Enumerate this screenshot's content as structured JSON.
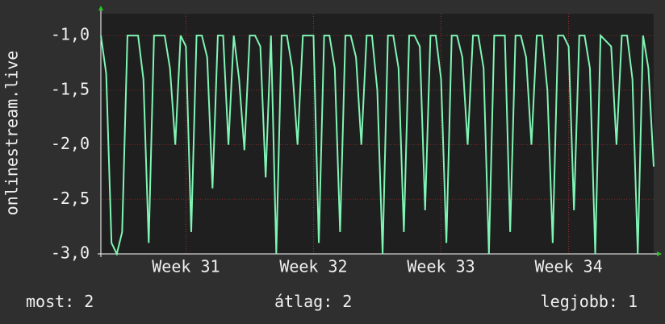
{
  "chart_data": {
    "type": "line",
    "y_label": "onlinestream.live",
    "categories": [
      null,
      null,
      null,
      null,
      null,
      null,
      null,
      null,
      null,
      null,
      null,
      null,
      null,
      null,
      null,
      null,
      "Week 31",
      null,
      null,
      null,
      null,
      null,
      null,
      null,
      null,
      null,
      null,
      null,
      null,
      null,
      null,
      null,
      null,
      null,
      null,
      null,
      null,
      null,
      null,
      null,
      "Week 32",
      null,
      null,
      null,
      null,
      null,
      null,
      null,
      null,
      null,
      null,
      null,
      null,
      null,
      null,
      null,
      null,
      null,
      null,
      null,
      null,
      null,
      null,
      null,
      "Week 33",
      null,
      null,
      null,
      null,
      null,
      null,
      null,
      null,
      null,
      null,
      null,
      null,
      null,
      null,
      null,
      null,
      null,
      null,
      null,
      null,
      null,
      null,
      null,
      "Week 34",
      null,
      null,
      null,
      null,
      null,
      null,
      null,
      null,
      null,
      null,
      null,
      null,
      null,
      null,
      null,
      null
    ],
    "series": [
      {
        "color": "#7ff5b4",
        "values": [
          -1,
          -1.35,
          -2.9,
          -3,
          -2.8,
          -1,
          -1,
          -1,
          -1.4,
          -2.9,
          -1,
          -1,
          -1,
          -1.3,
          -2.0,
          -1,
          -1.1,
          -2.8,
          -1,
          -1,
          -1.2,
          -2.4,
          -1,
          -1,
          -2.0,
          -1,
          -1.4,
          -2.05,
          -1,
          -1,
          -1.1,
          -2.3,
          -1,
          -3,
          -1,
          -1,
          -1.3,
          -2.0,
          -1,
          -1,
          -1,
          -2.9,
          -1,
          -1,
          -1.3,
          -2.8,
          -1,
          -1,
          -1.2,
          -2.0,
          -1,
          -1,
          -1.5,
          -3,
          -1,
          -1,
          -1.3,
          -2.8,
          -1,
          -1,
          -1.1,
          -2.6,
          -1,
          -1,
          -1.4,
          -2.9,
          -1,
          -1,
          -1.2,
          -2.0,
          -1,
          -1,
          -1.3,
          -3,
          -1,
          -1,
          -1,
          -2.8,
          -1,
          -1,
          -1.2,
          -2.0,
          -1,
          -1,
          -1.5,
          -2.9,
          -1,
          -1,
          -1.1,
          -2.6,
          -1,
          -1,
          -1.3,
          -3,
          -1,
          -1.05,
          -1.1,
          -2.0,
          -1,
          -1,
          -1.4,
          -3,
          -1,
          -1.3,
          -2.2
        ]
      }
    ],
    "ylim": [
      -3.0,
      -0.8
    ],
    "yticks": [
      {
        "value": -1.0,
        "label": "-1,0"
      },
      {
        "value": -1.5,
        "label": "-1,5"
      },
      {
        "value": -2.0,
        "label": "-2,0"
      },
      {
        "value": -2.5,
        "label": "-2,5"
      },
      {
        "value": -3.0,
        "label": "-3,0"
      }
    ],
    "grid": true,
    "stats": [
      {
        "label": "most:",
        "value": 2
      },
      {
        "label": "átlag:",
        "value": 2
      },
      {
        "label": "legjobb:",
        "value": 1
      }
    ]
  }
}
